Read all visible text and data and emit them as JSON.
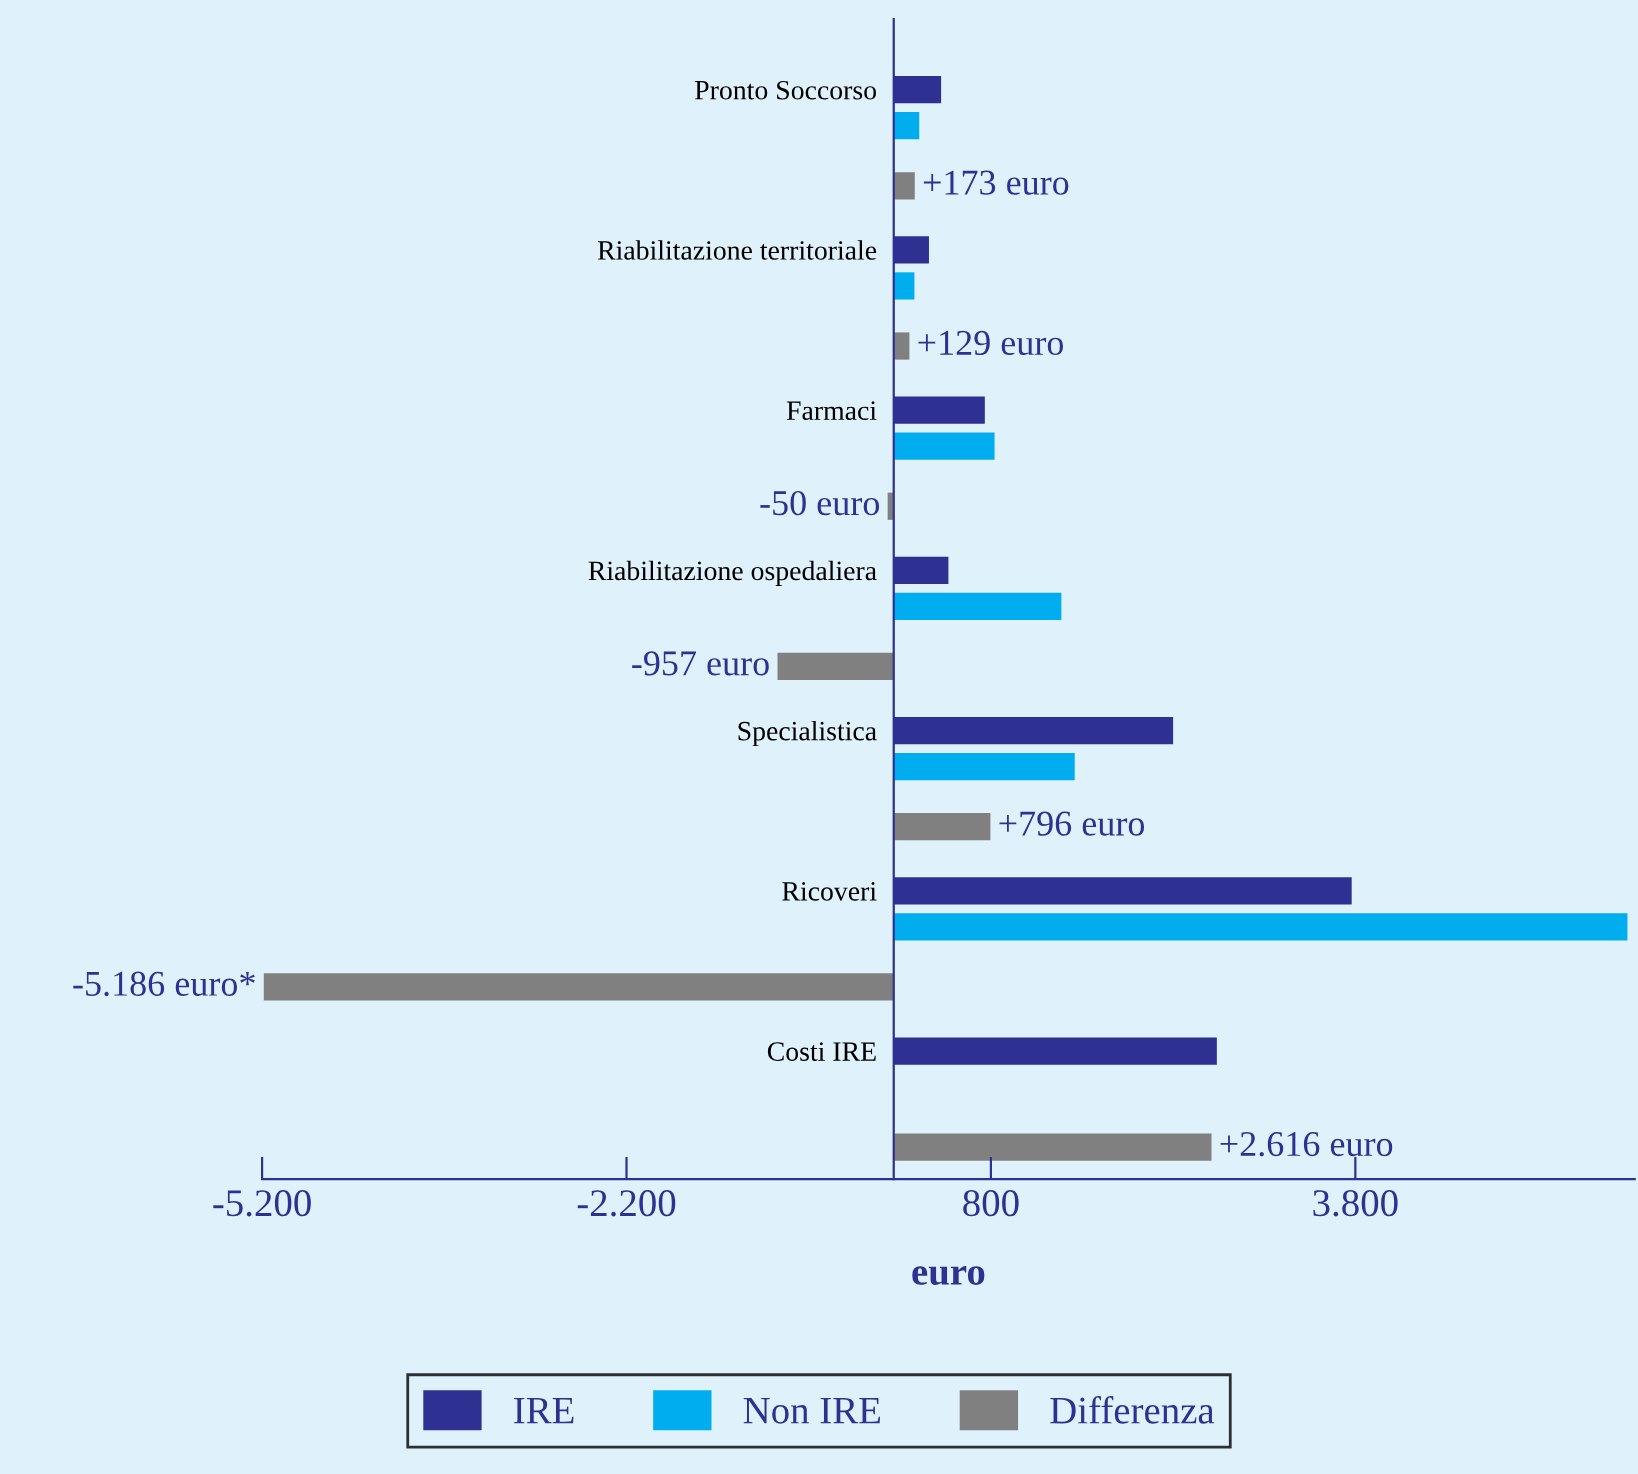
{
  "chart_data": {
    "type": "bar",
    "orientation": "horizontal",
    "xlabel": "euro",
    "categories": [
      "Pronto Soccorso",
      "Riabilitazione territoriale",
      "Farmaci",
      "Riabilitazione ospedaliera",
      "Specialistica",
      "Ricoveri",
      "Costi IRE"
    ],
    "series": [
      {
        "name": "IRE",
        "color": "#2e3192",
        "values": [
          390,
          290,
          750,
          450,
          2300,
          3770,
          2660
        ]
      },
      {
        "name": "Non IRE",
        "color": "#00aeef",
        "values": [
          210,
          170,
          830,
          1380,
          1490,
          6040,
          null
        ]
      },
      {
        "name": "Differenza",
        "color": "#808080",
        "values": [
          173,
          129,
          -50,
          -957,
          796,
          -5186,
          2616
        ],
        "value_labels": [
          "+173 euro",
          "+129 euro",
          "-50 euro",
          "-957 euro",
          "+796 euro",
          "-5.186 euro*",
          "+2.616 euro"
        ]
      }
    ],
    "xlim": [
      -5200,
      6100
    ],
    "xticks": [
      {
        "value": -5200,
        "label": "-5.200"
      },
      {
        "value": -2200,
        "label": "-2.200"
      },
      800,
      {
        "value": 3800,
        "label": "3.800"
      }
    ],
    "grid": false,
    "legend": "bottom"
  }
}
